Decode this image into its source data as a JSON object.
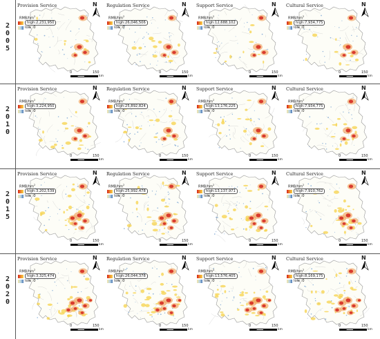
{
  "years": [
    {
      "digits": [
        "2",
        "0",
        "0",
        "5"
      ],
      "panels": [
        {
          "title": "Provision Service",
          "high": "high:2,231,950"
        },
        {
          "title": "Regulation Service",
          "high": "high:26,046,506"
        },
        {
          "title": "Support Service",
          "high": "high:12,688,102"
        },
        {
          "title": "Cultural Service",
          "high": "high:7,934,775"
        }
      ]
    },
    {
      "digits": [
        "2",
        "0",
        "1",
        "0"
      ],
      "panels": [
        {
          "title": "Provision Service",
          "high": "high:3,224,950"
        },
        {
          "title": "Regulation Service",
          "high": "high:25,892,824"
        },
        {
          "title": "Support Service",
          "high": "high:13,176,225"
        },
        {
          "title": "Cultural Service",
          "high": "high:7,934,775"
        }
      ]
    },
    {
      "digits": [
        "2",
        "0",
        "1",
        "5"
      ],
      "panels": [
        {
          "title": "Provision Service",
          "high": "high:3,202,539"
        },
        {
          "title": "Regulation Service",
          "high": "high:25,992,478"
        },
        {
          "title": "Support Service",
          "high": "high:13,137,971"
        },
        {
          "title": "Cultural Service",
          "high": "high:7,910,762"
        }
      ]
    },
    {
      "digits": [
        "2",
        "0",
        "2",
        "0"
      ],
      "panels": [
        {
          "title": "Provision Service",
          "high": "high:3,325,474"
        },
        {
          "title": "Regulation Service",
          "high": "high:26,044,378"
        },
        {
          "title": "Support Service",
          "high": "high:13,576,405"
        },
        {
          "title": "Cultural Service",
          "high": "high:8,169,175"
        }
      ]
    }
  ],
  "legend": {
    "unit": "RMB/hm",
    "unit_sup": "2",
    "low": "low :0"
  },
  "north_label": "N",
  "scale": {
    "zero": "0",
    "max": "150",
    "unit": "km"
  },
  "colors": {
    "high": "#d4231c",
    "mid": "#f5d24a",
    "low": "#4a78b5",
    "river": "#8fb3d9",
    "boundary": "#9a9a9a"
  }
}
